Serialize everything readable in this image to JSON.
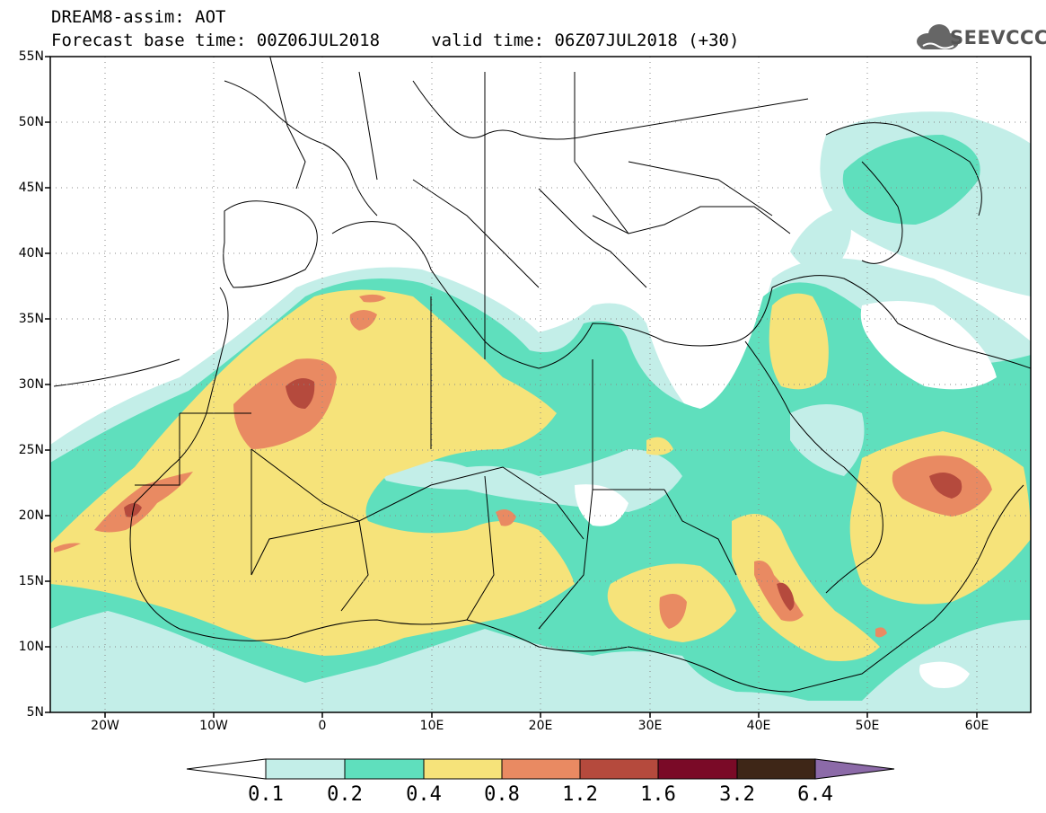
{
  "title": {
    "line1": "DREAM8-assim: AOT",
    "line2": "Forecast base time: 00Z06JUL2018     valid time: 06Z07JUL2018 (+30)"
  },
  "logo": {
    "text": "SEEVCCC",
    "icon": "cloud-icon"
  },
  "map": {
    "latitude_labels": [
      "55N",
      "50N",
      "45N",
      "40N",
      "35N",
      "30N",
      "25N",
      "20N",
      "15N",
      "10N",
      "5N"
    ],
    "longitude_labels": [
      "20W",
      "10W",
      "0",
      "10E",
      "20E",
      "30E",
      "40E",
      "50E",
      "60E"
    ],
    "colors": {
      "ocean": "#ffffff",
      "borders": "#000000",
      "grid": "#999999"
    }
  },
  "colorbar": {
    "levels": [
      "0.1",
      "0.2",
      "0.4",
      "0.8",
      "1.2",
      "1.6",
      "3.2",
      "6.4"
    ],
    "colors": [
      "#ffffff",
      "#c3eee8",
      "#5fdfbd",
      "#f6e37a",
      "#e98a62",
      "#b54a3d",
      "#7a0a27",
      "#3e2617",
      "#8c6aa8"
    ]
  }
}
